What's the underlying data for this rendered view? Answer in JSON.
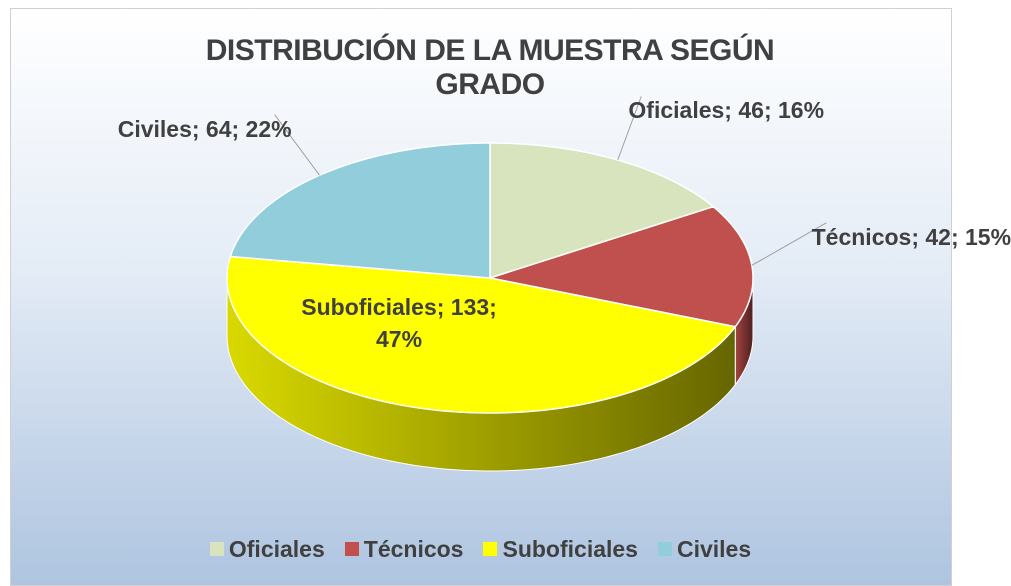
{
  "chart_data": {
    "type": "pie",
    "title": "DISTRIBUCIÓN DE LA MUESTRA SEGÚN GRADO",
    "categories": [
      "Oficiales",
      "Técnicos",
      "Suboficiales",
      "Civiles"
    ],
    "values": [
      46,
      42,
      133,
      64
    ],
    "value_labels": [
      "Oficiales; 46; 16%",
      "Técnicos; 42; 15%",
      "Suboficiales; 133; 47%",
      "Civiles; 64; 22%"
    ],
    "colors": [
      "#d7e4bd",
      "#c0504d",
      "#ffff00",
      "#92cddc"
    ],
    "legend": "bottom"
  }
}
